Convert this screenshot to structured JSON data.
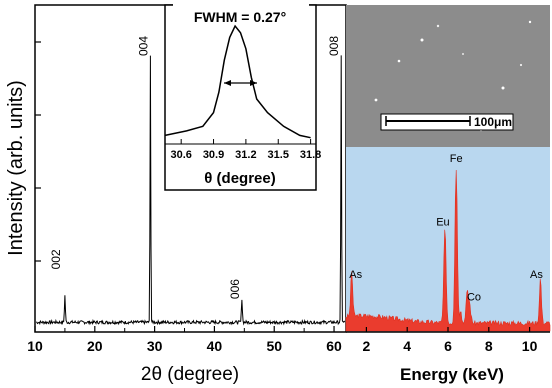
{
  "chart_data": [
    {
      "type": "line",
      "xlabel": "2θ (degree)",
      "ylabel": "Intensity (arb. units)",
      "xlim": [
        10,
        62
      ],
      "x_ticks": [
        "10",
        "20",
        "30",
        "40",
        "50",
        "60"
      ],
      "grid": false,
      "peaks": [
        {
          "label": "002",
          "x": 15.0,
          "y": 0.1
        },
        {
          "label": "004",
          "x": 29.3,
          "y": 1.0
        },
        {
          "label": "006",
          "x": 44.6,
          "y": 0.09
        },
        {
          "label": "008",
          "x": 61.2,
          "y": 1.0
        }
      ]
    },
    {
      "type": "line",
      "title": "FWHM = 0.27°",
      "xlabel": "θ (degree)",
      "xlim": [
        30.45,
        31.85
      ],
      "x_ticks": [
        "30.6",
        "30.9",
        "31.2",
        "31.5",
        "31.8"
      ],
      "x": [
        30.45,
        30.65,
        30.8,
        30.9,
        30.95,
        31.0,
        31.05,
        31.1,
        31.15,
        31.2,
        31.25,
        31.3,
        31.4,
        31.55,
        31.7,
        31.8
      ],
      "values": [
        0.04,
        0.08,
        0.12,
        0.24,
        0.42,
        0.7,
        0.9,
        1.0,
        0.94,
        0.8,
        0.55,
        0.36,
        0.24,
        0.12,
        0.04,
        0.02
      ]
    },
    {
      "type": "area",
      "xlabel": "Energy (keV)",
      "xlim": [
        1.0,
        11.0
      ],
      "x_ticks": [
        "2",
        "4",
        "6",
        "8",
        "10"
      ],
      "peaks": [
        {
          "label": "As",
          "x": 1.28,
          "y": 0.28
        },
        {
          "label": "Eu",
          "x": 5.85,
          "y": 0.58
        },
        {
          "label": "Fe",
          "x": 6.4,
          "y": 1.0
        },
        {
          "label": "Co",
          "x": 6.93,
          "y": 0.17
        },
        {
          "label": "As",
          "x": 10.53,
          "y": 0.28
        }
      ]
    }
  ],
  "sem": {
    "scale_bar_label": "100μm"
  }
}
